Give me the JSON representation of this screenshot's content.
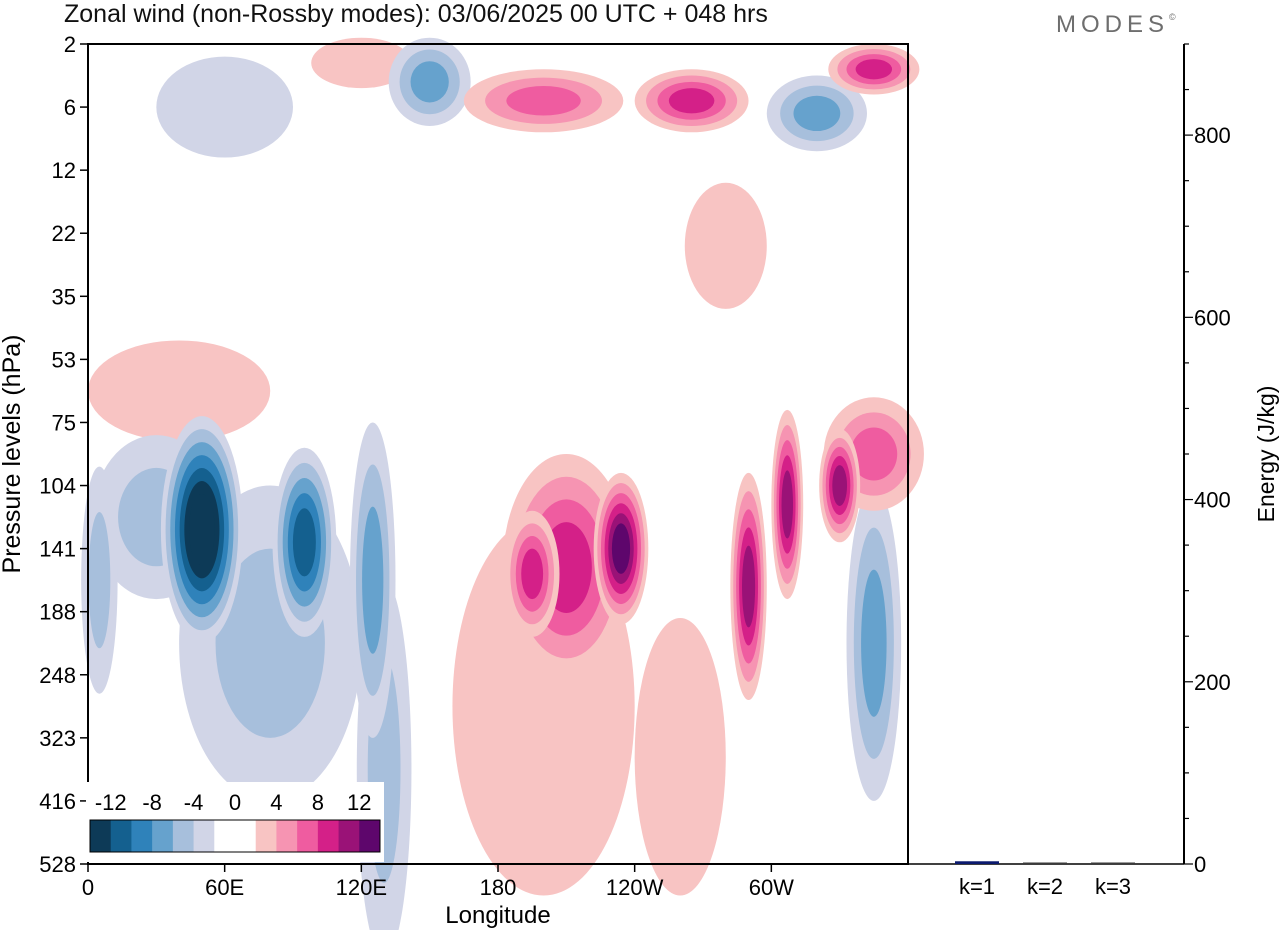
{
  "chart_data": [
    {
      "type": "heatmap",
      "title": "Zonal wind (non-Rossby modes):  03/06/2025  00 UTC  + 048 hrs",
      "brand": "MODES",
      "brand_mark": "©",
      "xlabel": "Longitude",
      "ylabel": "Pressure levels (hPa)",
      "x_ticks": [
        {
          "lon": 0,
          "label": "0"
        },
        {
          "lon": 60,
          "label": "60E"
        },
        {
          "lon": 120,
          "label": "120E"
        },
        {
          "lon": 180,
          "label": "180"
        },
        {
          "lon": 240,
          "label": "120W"
        },
        {
          "lon": 300,
          "label": "60W"
        }
      ],
      "xlim": [
        0,
        360
      ],
      "y_levels": [
        "2",
        "6",
        "12",
        "22",
        "35",
        "53",
        "75",
        "104",
        "141",
        "188",
        "248",
        "323",
        "416",
        "528"
      ],
      "colorbar": {
        "labels": [
          "-12",
          "-8",
          "-4",
          "0",
          "4",
          "8",
          "12"
        ],
        "colors": [
          "#0d3a57",
          "#14608f",
          "#2f82ba",
          "#66a2cd",
          "#a7bfdc",
          "#d1d5e7",
          "#ffffff",
          "#ffffff",
          "#f8c4c3",
          "#f694b2",
          "#ef5ca0",
          "#d42088",
          "#9a1277",
          "#5e066c"
        ]
      },
      "features": [
        {
          "lon": 50,
          "level": 7.7,
          "value": -14,
          "w": 18,
          "h": 1.8
        },
        {
          "lon": 95,
          "level": 7.9,
          "value": -10,
          "w": 14,
          "h": 1.5
        },
        {
          "lon": 125,
          "level": 8.5,
          "value": -7,
          "w": 10,
          "h": 2.5
        },
        {
          "lon": 30,
          "level": 7.5,
          "value": -5,
          "w": 28,
          "h": 1.3
        },
        {
          "lon": 5,
          "level": 8.5,
          "value": -5,
          "w": 8,
          "h": 1.8
        },
        {
          "lon": 80,
          "level": 9.5,
          "value": -5,
          "w": 40,
          "h": 2.5
        },
        {
          "lon": 130,
          "level": 11.5,
          "value": -4,
          "w": 12,
          "h": 3
        },
        {
          "lon": 345,
          "level": 9.5,
          "value": -6,
          "w": 12,
          "h": 2.5
        },
        {
          "lon": 150,
          "level": 0.6,
          "value": -6,
          "w": 18,
          "h": 0.7
        },
        {
          "lon": 320,
          "level": 1.1,
          "value": -6,
          "w": 22,
          "h": 0.6
        },
        {
          "lon": 60,
          "level": 1.0,
          "value": -3,
          "w": 30,
          "h": 0.8
        },
        {
          "lon": 210,
          "level": 8.3,
          "value": 9,
          "w": 28,
          "h": 1.8
        },
        {
          "lon": 234,
          "level": 8.0,
          "value": 12,
          "w": 12,
          "h": 1.2
        },
        {
          "lon": 195,
          "level": 8.4,
          "value": 9,
          "w": 12,
          "h": 1.0
        },
        {
          "lon": 290,
          "level": 8.6,
          "value": 10,
          "w": 8,
          "h": 1.8
        },
        {
          "lon": 307,
          "level": 7.3,
          "value": 10,
          "w": 7,
          "h": 1.5
        },
        {
          "lon": 330,
          "level": 7.0,
          "value": 11,
          "w": 9,
          "h": 0.9
        },
        {
          "lon": 200,
          "level": 10.5,
          "value": 3,
          "w": 40,
          "h": 3
        },
        {
          "lon": 260,
          "level": 11.3,
          "value": 3,
          "w": 20,
          "h": 2.2
        },
        {
          "lon": 345,
          "level": 6.5,
          "value": 6,
          "w": 22,
          "h": 0.9
        },
        {
          "lon": 40,
          "level": 5.5,
          "value": 3,
          "w": 40,
          "h": 0.8
        },
        {
          "lon": 200,
          "level": 0.9,
          "value": 7,
          "w": 35,
          "h": 0.5
        },
        {
          "lon": 265,
          "level": 0.9,
          "value": 8,
          "w": 25,
          "h": 0.5
        },
        {
          "lon": 345,
          "level": 0.4,
          "value": 8,
          "w": 20,
          "h": 0.4
        },
        {
          "lon": 120,
          "level": 0.3,
          "value": 3,
          "w": 22,
          "h": 0.4
        },
        {
          "lon": 280,
          "level": 3.2,
          "value": 3,
          "w": 18,
          "h": 1.0
        }
      ]
    },
    {
      "type": "bar",
      "ylabel": "Energy (J/kg)",
      "ylim": [
        0,
        900
      ],
      "y_ticks": [
        "0",
        "200",
        "400",
        "600",
        "800"
      ],
      "categories": [
        "k=1",
        "k=2",
        "k=3"
      ],
      "values": [
        3,
        1,
        1
      ],
      "bar_colors": [
        "#0b1a6e",
        "#3a3a3a",
        "#3a3a3a"
      ]
    }
  ]
}
